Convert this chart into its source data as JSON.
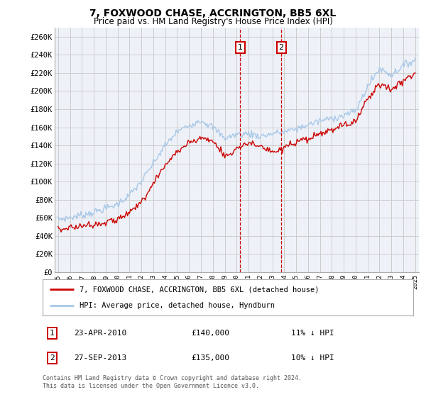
{
  "title": "7, FOXWOOD CHASE, ACCRINGTON, BB5 6XL",
  "subtitle": "Price paid vs. HM Land Registry's House Price Index (HPI)",
  "ylabel_ticks": [
    "£0",
    "£20K",
    "£40K",
    "£60K",
    "£80K",
    "£100K",
    "£120K",
    "£140K",
    "£160K",
    "£180K",
    "£200K",
    "£220K",
    "£240K",
    "£260K"
  ],
  "ytick_values": [
    0,
    20000,
    40000,
    60000,
    80000,
    100000,
    120000,
    140000,
    160000,
    180000,
    200000,
    220000,
    240000,
    260000
  ],
  "ylim": [
    0,
    270000
  ],
  "xlim_start": 1994.7,
  "xlim_end": 2025.3,
  "hpi_color": "#a8c8e8",
  "price_color": "#cc0000",
  "marker1_date": 2010.31,
  "marker2_date": 2013.75,
  "marker1_price": 140000,
  "marker2_price": 135000,
  "legend_label1": "7, FOXWOOD CHASE, ACCRINGTON, BB5 6XL (detached house)",
  "legend_label2": "HPI: Average price, detached house, Hyndburn",
  "annotation1_date_str": "23-APR-2010",
  "annotation1_price_str": "£140,000",
  "annotation1_hpi_str": "11% ↓ HPI",
  "annotation2_date_str": "27-SEP-2013",
  "annotation2_price_str": "£135,000",
  "annotation2_hpi_str": "10% ↓ HPI",
  "footer": "Contains HM Land Registry data © Crown copyright and database right 2024.\nThis data is licensed under the Open Government Licence v3.0.",
  "background_color": "#ffffff",
  "grid_color": "#cccccc",
  "plot_bg_color": "#eef2f8",
  "key_years_hpi": [
    1995,
    1996,
    1997,
    1998,
    1999,
    2000,
    2001,
    2002,
    2003,
    2004,
    2005,
    2006,
    2007,
    2008,
    2009,
    2010,
    2011,
    2012,
    2013,
    2014,
    2015,
    2016,
    2017,
    2018,
    2019,
    2020,
    2021,
    2022,
    2023,
    2024,
    2025
  ],
  "key_vals_hpi": [
    58000,
    60000,
    63000,
    66000,
    70000,
    75000,
    85000,
    100000,
    120000,
    140000,
    155000,
    162000,
    168000,
    160000,
    148000,
    152000,
    153000,
    150000,
    153000,
    155000,
    158000,
    163000,
    167000,
    170000,
    173000,
    178000,
    205000,
    225000,
    218000,
    228000,
    235000
  ],
  "key_years_red": [
    1995,
    1996,
    1997,
    1998,
    1999,
    2000,
    2001,
    2002,
    2003,
    2004,
    2005,
    2006,
    2007,
    2008,
    2009,
    2010,
    2010.31,
    2011,
    2012,
    2013,
    2013.75,
    2014,
    2015,
    2016,
    2017,
    2018,
    2019,
    2020,
    2021,
    2022,
    2023,
    2024,
    2025
  ],
  "key_vals_red": [
    47000,
    49000,
    51000,
    53000,
    55000,
    58000,
    65000,
    78000,
    98000,
    118000,
    133000,
    143000,
    148000,
    145000,
    128000,
    135000,
    140000,
    143000,
    138000,
    132000,
    135000,
    138000,
    142000,
    147000,
    152000,
    157000,
    162000,
    167000,
    192000,
    208000,
    202000,
    212000,
    220000
  ]
}
